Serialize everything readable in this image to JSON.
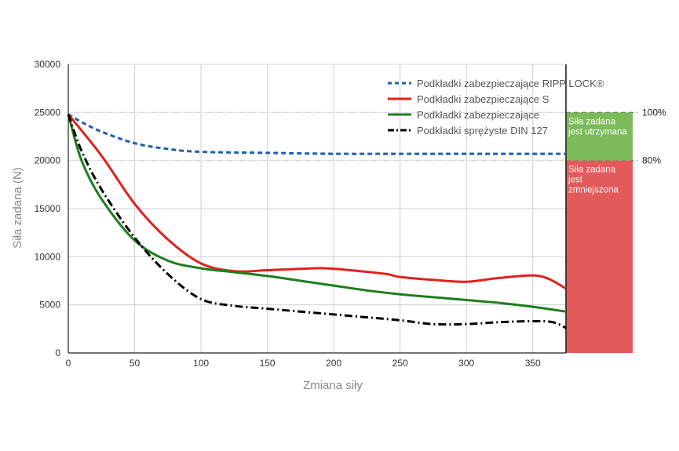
{
  "chart_data": {
    "type": "line",
    "xlabel": "Zmiana siły",
    "ylabel": "Siła zadana (N)",
    "xlim": [
      0,
      375
    ],
    "ylim": [
      0,
      30000
    ],
    "x_ticks": [
      0,
      50,
      100,
      150,
      200,
      250,
      300,
      350
    ],
    "y_ticks": [
      0,
      5000,
      10000,
      15000,
      20000,
      25000,
      30000
    ],
    "grid": true,
    "legend_position": "top-right",
    "series": [
      {
        "name": "Podkładki zabezpieczające RIPP LOCK®",
        "color": "#1f5fa8",
        "style": "dashed",
        "x": [
          0,
          10,
          25,
          50,
          75,
          100,
          150,
          200,
          250,
          300,
          350,
          375
        ],
        "y": [
          24800,
          24000,
          23000,
          21800,
          21200,
          20900,
          20800,
          20700,
          20700,
          20700,
          20700,
          20700
        ]
      },
      {
        "name": "Podkładki zabezpieczające S",
        "color": "#e0201b",
        "style": "solid",
        "x": [
          0,
          25,
          50,
          75,
          100,
          125,
          150,
          175,
          195,
          220,
          240,
          250,
          275,
          300,
          325,
          355,
          375
        ],
        "y": [
          24800,
          20500,
          15500,
          11800,
          9300,
          8500,
          8600,
          8750,
          8800,
          8500,
          8200,
          7900,
          7600,
          7400,
          7800,
          8000,
          6700
        ]
      },
      {
        "name": "Podkładki zabezpieczające",
        "color": "#1e7d1e",
        "style": "solid",
        "x": [
          0,
          10,
          25,
          50,
          75,
          100,
          125,
          150,
          175,
          200,
          225,
          250,
          275,
          300,
          325,
          350,
          375
        ],
        "y": [
          24800,
          20000,
          16000,
          11700,
          9600,
          8800,
          8400,
          8000,
          7500,
          7000,
          6500,
          6100,
          5800,
          5500,
          5200,
          4800,
          4300
        ]
      },
      {
        "name": "Podkładki sprężyste DIN 127",
        "color": "#000000",
        "style": "dashdot",
        "x": [
          0,
          10,
          25,
          50,
          75,
          100,
          125,
          150,
          175,
          200,
          225,
          250,
          275,
          300,
          325,
          350,
          365,
          375
        ],
        "y": [
          24800,
          21000,
          17000,
          12000,
          8200,
          5600,
          4900,
          4600,
          4300,
          4000,
          3700,
          3400,
          3000,
          3000,
          3200,
          3300,
          3200,
          2600
        ]
      }
    ],
    "reference_lines": [
      {
        "y": 25000,
        "label": "100%"
      },
      {
        "y": 20000,
        "label": "80%"
      }
    ],
    "zones": [
      {
        "from": 20000,
        "to": 25000,
        "label_lines": [
          "Siła zadana",
          "jest utrzymana"
        ],
        "color": "#7cba5a"
      },
      {
        "from": 0,
        "to": 20000,
        "label_lines": [
          "Siła zadana",
          "jest",
          "zmniejszona"
        ],
        "color": "#e25a5a"
      }
    ]
  }
}
